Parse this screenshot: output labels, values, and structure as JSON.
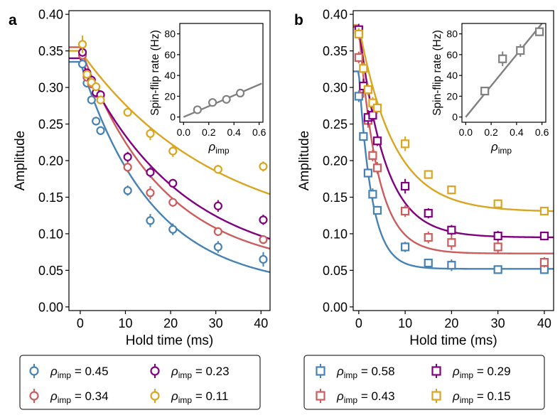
{
  "panels": [
    {
      "label": "a",
      "marker": "circle",
      "main": {
        "type": "scatter",
        "xlabel": "Hold time (ms)",
        "ylabel": "Amplitude",
        "xlim": [
          -2.5,
          42
        ],
        "ylim": [
          -0.005,
          0.405
        ],
        "xticks": [
          0,
          10,
          20,
          30,
          40
        ],
        "xtick_labels": [
          "0",
          "10",
          "20",
          "30",
          "40"
        ],
        "yticks": [
          0.0,
          0.05,
          0.1,
          0.15,
          0.2,
          0.25,
          0.3,
          0.35,
          0.4
        ],
        "ytick_labels": [
          "0.00",
          "0.05",
          "0.10",
          "0.15",
          "0.20",
          "0.25",
          "0.30",
          "0.35",
          "0.40"
        ],
        "series": [
          {
            "name": "ρimp = 0.45",
            "rho": "0.45",
            "color": "#4682b4",
            "x": [
              0.5,
              1.5,
              2.5,
              3.5,
              4.5,
              10.5,
              15.5,
              20.5,
              30.5,
              40.5
            ],
            "y": [
              0.332,
              0.306,
              0.283,
              0.254,
              0.241,
              0.159,
              0.118,
              0.106,
              0.082,
              0.065
            ],
            "err": [
              0.005,
              0.005,
              0.006,
              0.006,
              0.006,
              0.007,
              0.009,
              0.008,
              0.008,
              0.01
            ],
            "fit": {
              "A": 0.31,
              "tau": 16.0,
              "C": 0.025
            }
          },
          {
            "name": "ρimp = 0.34",
            "rho": "0.34",
            "color": "#cd5c5c",
            "x": [
              0.5,
              1.5,
              2.5,
              3.5,
              4.5,
              10.5,
              15.5,
              20.5,
              30.5,
              40.5
            ],
            "y": [
              0.344,
              0.314,
              0.305,
              0.292,
              0.289,
              0.191,
              0.156,
              0.143,
              0.103,
              0.092
            ],
            "err": [
              0.005,
              0.005,
              0.006,
              0.006,
              0.006,
              0.007,
              0.009,
              0.006,
              0.006,
              0.006
            ],
            "fit": {
              "A": 0.305,
              "tau": 18.0,
              "C": 0.05
            }
          },
          {
            "name": "ρimp = 0.23",
            "rho": "0.23",
            "color": "#800080",
            "x": [
              0.5,
              1.5,
              2.5,
              3.5,
              4.5,
              10.5,
              15.5,
              20.5,
              30.5,
              40.5
            ],
            "y": [
              0.348,
              0.32,
              0.31,
              0.293,
              0.29,
              0.205,
              0.184,
              0.169,
              0.138,
              0.119
            ],
            "err": [
              0.006,
              0.005,
              0.006,
              0.006,
              0.006,
              0.007,
              0.007,
              0.006,
              0.008,
              0.007
            ],
            "fit": {
              "A": 0.29,
              "tau": 22.0,
              "C": 0.05
            }
          },
          {
            "name": "ρimp = 0.11",
            "rho": "0.11",
            "color": "#daa520",
            "x": [
              0.5,
              1.5,
              2.5,
              3.5,
              4.5,
              10.5,
              15.5,
              20.5,
              30.5,
              40.5
            ],
            "y": [
              0.359,
              0.318,
              0.307,
              0.301,
              0.283,
              0.266,
              0.237,
              0.213,
              0.188,
              0.192
            ],
            "err": [
              0.012,
              0.006,
              0.006,
              0.006,
              0.006,
              0.006,
              0.009,
              0.008,
              0.006,
              0.007
            ],
            "fit": {
              "A": 0.26,
              "tau": 30.0,
              "C": 0.09
            }
          }
        ]
      },
      "inset": {
        "type": "scatter",
        "ylabel": "Spin-flip rate (Hz)",
        "xlabel_main": "ρ",
        "xlabel_sub": "imp",
        "xlim": [
          -0.03,
          0.63
        ],
        "ylim": [
          -5,
          90
        ],
        "xticks": [
          0.0,
          0.2,
          0.4,
          0.6
        ],
        "xtick_labels": [
          "0.0",
          "0.2",
          "0.4",
          "0.6"
        ],
        "yticks": [
          0,
          20,
          40,
          60,
          80
        ],
        "ytick_labels": [
          "0",
          "20",
          "40",
          "60",
          "80"
        ],
        "color": "#808080",
        "x": [
          0.11,
          0.23,
          0.34,
          0.45
        ],
        "y": [
          7,
          14,
          17,
          23
        ],
        "err": [
          1.5,
          1.5,
          1.5,
          1.5
        ],
        "fit": {
          "slope": 52,
          "x0": 0.0,
          "x1": 0.62
        }
      },
      "legend": [
        {
          "series": 0,
          "rho": "0.45"
        },
        {
          "series": 2,
          "rho": "0.23"
        },
        {
          "series": 1,
          "rho": "0.34"
        },
        {
          "series": 3,
          "rho": "0.11"
        }
      ]
    },
    {
      "label": "b",
      "marker": "square",
      "main": {
        "type": "scatter",
        "xlabel": "Hold time (ms)",
        "ylabel": "Amplitude",
        "xlim": [
          -1.2,
          42
        ],
        "ylim": [
          -0.005,
          0.405
        ],
        "xticks": [
          0,
          10,
          20,
          30,
          40
        ],
        "xtick_labels": [
          "0",
          "10",
          "20",
          "30",
          "40"
        ],
        "yticks": [
          0.0,
          0.05,
          0.1,
          0.15,
          0.2,
          0.25,
          0.3,
          0.35,
          0.4
        ],
        "ytick_labels": [
          "0.00",
          "0.05",
          "0.10",
          "0.15",
          "0.20",
          "0.25",
          "0.30",
          "0.35",
          "0.40"
        ],
        "series": [
          {
            "name": "ρimp = 0.58",
            "rho": "0.58",
            "color": "#4682b4",
            "x": [
              0.0,
              1.0,
              2.0,
              3.0,
              4.0,
              10.0,
              15.0,
              20.0,
              30.0,
              40.0
            ],
            "y": [
              0.288,
              0.233,
              0.183,
              0.154,
              0.132,
              0.082,
              0.06,
              0.057,
              0.051,
              0.051
            ],
            "err": [
              0.008,
              0.006,
              0.006,
              0.008,
              0.006,
              0.007,
              0.006,
              0.008,
              0.005,
              0.004
            ],
            "fit": {
              "A": 0.27,
              "tau": 2.8,
              "C": 0.052
            }
          },
          {
            "name": "ρimp = 0.43",
            "rho": "0.43",
            "color": "#cd5c5c",
            "x": [
              0.0,
              1.0,
              2.0,
              3.0,
              4.0,
              10.0,
              15.0,
              20.0,
              30.0,
              40.0
            ],
            "y": [
              0.341,
              0.298,
              0.255,
              0.207,
              0.19,
              0.131,
              0.095,
              0.088,
              0.082,
              0.061
            ],
            "err": [
              0.008,
              0.012,
              0.01,
              0.008,
              0.008,
              0.008,
              0.008,
              0.01,
              0.008,
              0.007
            ],
            "fit": {
              "A": 0.31,
              "tau": 4.0,
              "C": 0.073
            }
          },
          {
            "name": "ρimp = 0.29",
            "rho": "0.29",
            "color": "#800080",
            "x": [
              0.0,
              1.0,
              2.0,
              3.0,
              4.0,
              10.0,
              15.0,
              20.0,
              30.0,
              40.0
            ],
            "y": [
              0.379,
              0.302,
              0.259,
              0.262,
              0.227,
              0.165,
              0.128,
              0.105,
              0.097,
              0.097
            ],
            "err": [
              0.008,
              0.01,
              0.01,
              0.008,
              0.007,
              0.01,
              0.007,
              0.007,
              0.007,
              0.006
            ],
            "fit": {
              "A": 0.29,
              "tau": 5.5,
              "C": 0.095
            }
          },
          {
            "name": "ρimp = 0.15",
            "rho": "0.15",
            "color": "#daa520",
            "x": [
              0.0,
              1.0,
              2.0,
              3.0,
              4.0,
              10.0,
              15.0,
              20.0,
              30.0,
              40.0
            ],
            "y": [
              0.373,
              0.326,
              0.297,
              0.279,
              0.272,
              0.223,
              0.181,
              0.16,
              0.141,
              0.131
            ],
            "err": [
              0.008,
              0.008,
              0.008,
              0.008,
              0.008,
              0.01,
              0.006,
              0.006,
              0.006,
              0.005
            ],
            "fit": {
              "A": 0.255,
              "tau": 7.5,
              "C": 0.13
            }
          }
        ]
      },
      "inset": {
        "type": "scatter",
        "ylabel": "Spin-flip rate (Hz)",
        "xlabel_main": "ρ",
        "xlabel_sub": "imp",
        "xlim": [
          -0.03,
          0.63
        ],
        "ylim": [
          -5,
          90
        ],
        "xticks": [
          0.0,
          0.2,
          0.4,
          0.6
        ],
        "xtick_labels": [
          "0.0",
          "0.2",
          "0.4",
          "0.6"
        ],
        "yticks": [
          0,
          20,
          40,
          60,
          80
        ],
        "ytick_labels": [
          "0",
          "20",
          "40",
          "60",
          "80"
        ],
        "color": "#808080",
        "x": [
          0.15,
          0.29,
          0.43,
          0.58
        ],
        "y": [
          25,
          56,
          64,
          82
        ],
        "err": [
          2.5,
          7,
          6,
          4
        ],
        "fit": {
          "slope": 150,
          "x0": 0.0,
          "x1": 0.6
        }
      },
      "legend": [
        {
          "series": 0,
          "rho": "0.58"
        },
        {
          "series": 2,
          "rho": "0.29"
        },
        {
          "series": 1,
          "rho": "0.43"
        },
        {
          "series": 3,
          "rho": "0.15"
        }
      ]
    }
  ],
  "chart_data": [
    {
      "type": "scatter",
      "panel": "a",
      "title": "",
      "xlabel": "Hold time (ms)",
      "ylabel": "Amplitude",
      "ylim": [
        0.0,
        0.4
      ],
      "series": [
        {
          "name": "ρimp = 0.45",
          "x": [
            0.5,
            1.5,
            2.5,
            3.5,
            4.5,
            10.5,
            15.5,
            20.5,
            30.5,
            40.5
          ],
          "values": [
            0.332,
            0.306,
            0.283,
            0.254,
            0.241,
            0.159,
            0.118,
            0.106,
            0.082,
            0.065
          ]
        },
        {
          "name": "ρimp = 0.34",
          "x": [
            0.5,
            1.5,
            2.5,
            3.5,
            4.5,
            10.5,
            15.5,
            20.5,
            30.5,
            40.5
          ],
          "values": [
            0.344,
            0.314,
            0.305,
            0.292,
            0.289,
            0.191,
            0.156,
            0.143,
            0.103,
            0.092
          ]
        },
        {
          "name": "ρimp = 0.23",
          "x": [
            0.5,
            1.5,
            2.5,
            3.5,
            4.5,
            10.5,
            15.5,
            20.5,
            30.5,
            40.5
          ],
          "values": [
            0.348,
            0.32,
            0.31,
            0.293,
            0.29,
            0.205,
            0.184,
            0.169,
            0.138,
            0.119
          ]
        },
        {
          "name": "ρimp = 0.11",
          "x": [
            0.5,
            1.5,
            2.5,
            3.5,
            4.5,
            10.5,
            15.5,
            20.5,
            30.5,
            40.5
          ],
          "values": [
            0.359,
            0.318,
            0.307,
            0.301,
            0.283,
            0.266,
            0.237,
            0.213,
            0.188,
            0.192
          ]
        }
      ]
    },
    {
      "type": "scatter",
      "panel": "a-inset",
      "xlabel": "ρimp",
      "ylabel": "Spin-flip rate (Hz)",
      "x": [
        0.11,
        0.23,
        0.34,
        0.45
      ],
      "values": [
        7,
        14,
        17,
        23
      ]
    },
    {
      "type": "scatter",
      "panel": "b",
      "title": "",
      "xlabel": "Hold time (ms)",
      "ylabel": "Amplitude",
      "ylim": [
        0.0,
        0.4
      ],
      "series": [
        {
          "name": "ρimp = 0.58",
          "x": [
            0,
            1,
            2,
            3,
            4,
            10,
            15,
            20,
            30,
            40
          ],
          "values": [
            0.288,
            0.233,
            0.183,
            0.154,
            0.132,
            0.082,
            0.06,
            0.057,
            0.051,
            0.051
          ]
        },
        {
          "name": "ρimp = 0.43",
          "x": [
            0,
            1,
            2,
            3,
            4,
            10,
            15,
            20,
            30,
            40
          ],
          "values": [
            0.341,
            0.298,
            0.255,
            0.207,
            0.19,
            0.131,
            0.095,
            0.088,
            0.082,
            0.061
          ]
        },
        {
          "name": "ρimp = 0.29",
          "x": [
            0,
            1,
            2,
            3,
            4,
            10,
            15,
            20,
            30,
            40
          ],
          "values": [
            0.379,
            0.302,
            0.259,
            0.262,
            0.227,
            0.165,
            0.128,
            0.105,
            0.097,
            0.097
          ]
        },
        {
          "name": "ρimp = 0.15",
          "x": [
            0,
            1,
            2,
            3,
            4,
            10,
            15,
            20,
            30,
            40
          ],
          "values": [
            0.373,
            0.326,
            0.297,
            0.279,
            0.272,
            0.223,
            0.181,
            0.16,
            0.141,
            0.131
          ]
        }
      ]
    },
    {
      "type": "scatter",
      "panel": "b-inset",
      "xlabel": "ρimp",
      "ylabel": "Spin-flip rate (Hz)",
      "x": [
        0.15,
        0.29,
        0.43,
        0.58
      ],
      "values": [
        25,
        56,
        64,
        82
      ]
    }
  ]
}
